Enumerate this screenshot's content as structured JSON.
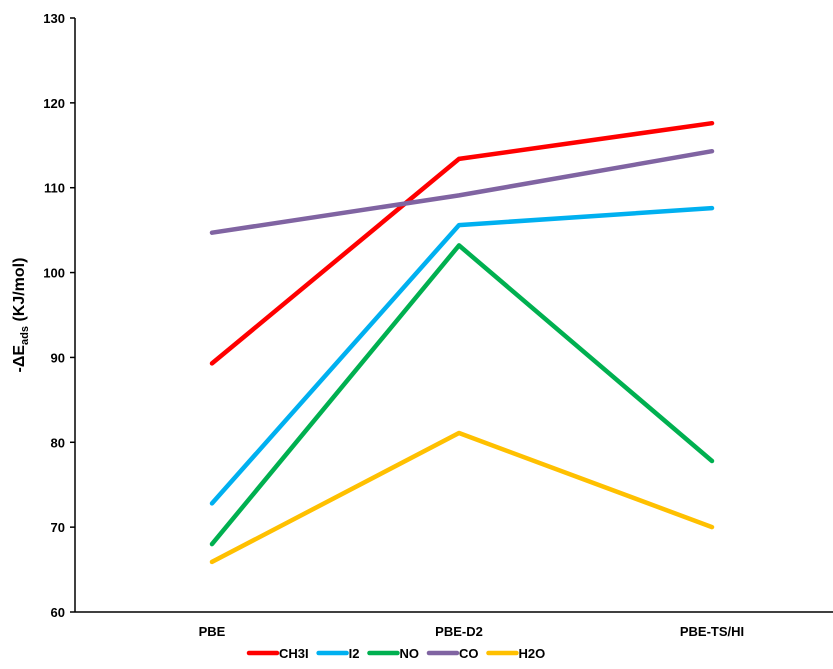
{
  "chart_data": {
    "type": "line",
    "categories": [
      "PBE",
      "PBE-D2",
      "PBE-TS/HI"
    ],
    "ylim": [
      60,
      130
    ],
    "yticks": [
      60,
      70,
      80,
      90,
      100,
      110,
      120,
      130
    ],
    "ylabel": {
      "main": "-ΔE",
      "sub": "ads",
      "unit": " (KJ/mol)"
    },
    "xlabel": "",
    "grid": false,
    "legend_position": "bottom",
    "series": [
      {
        "name": "CH3I",
        "color": "#ff0000",
        "values": [
          89.3,
          113.4,
          117.6
        ]
      },
      {
        "name": "I2",
        "color": "#00b0f0",
        "values": [
          72.8,
          105.6,
          107.6
        ]
      },
      {
        "name": "NO",
        "color": "#00b050",
        "values": [
          68.0,
          103.2,
          77.8
        ]
      },
      {
        "name": "CO",
        "color": "#8064a2",
        "values": [
          104.7,
          109.1,
          114.3
        ]
      },
      {
        "name": "H2O",
        "color": "#ffc000",
        "values": [
          65.9,
          81.1,
          70.0
        ]
      }
    ]
  }
}
